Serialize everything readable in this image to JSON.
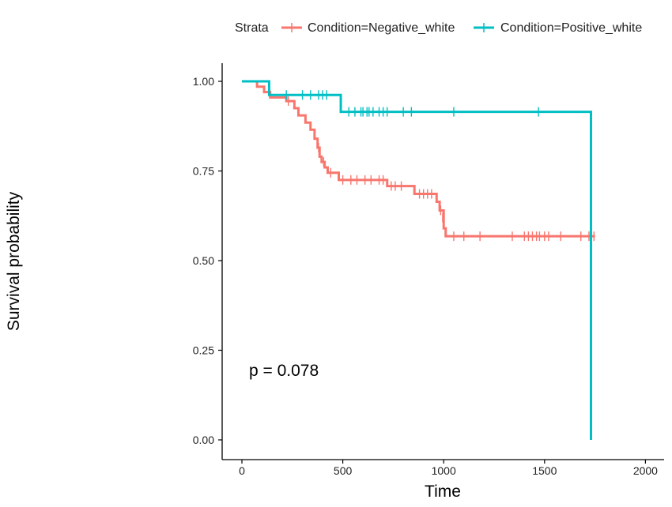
{
  "chart_data": {
    "type": "line",
    "subtype": "kaplan-meier-step",
    "xlabel": "Time",
    "ylabel": "Survival probability",
    "xlim": [
      -100,
      2100
    ],
    "ylim": [
      0,
      1
    ],
    "xticks": [
      0,
      500,
      1000,
      1500,
      2000
    ],
    "yticks": [
      0.0,
      0.25,
      0.5,
      0.75,
      1.0
    ],
    "xtick_labels": [
      "0",
      "500",
      "1000",
      "1500",
      "2000"
    ],
    "ytick_labels": [
      "0.00",
      "0.25",
      "0.50",
      "0.75",
      "1.00"
    ],
    "grid": false,
    "legend": {
      "title": "Strata",
      "position": "top",
      "entries": [
        "Condition=Negative_white",
        "Condition=Positive_white"
      ]
    },
    "annotation": "p = 0.078",
    "series": [
      {
        "name": "Condition=Negative_white",
        "color": "#F8766D",
        "steps": [
          [
            0,
            1.0
          ],
          [
            75,
            0.985
          ],
          [
            110,
            0.97
          ],
          [
            140,
            0.955
          ],
          [
            220,
            0.945
          ],
          [
            260,
            0.925
          ],
          [
            280,
            0.905
          ],
          [
            315,
            0.885
          ],
          [
            340,
            0.865
          ],
          [
            360,
            0.84
          ],
          [
            375,
            0.815
          ],
          [
            385,
            0.79
          ],
          [
            395,
            0.775
          ],
          [
            410,
            0.76
          ],
          [
            425,
            0.745
          ],
          [
            480,
            0.725
          ],
          [
            720,
            0.708
          ],
          [
            855,
            0.686
          ],
          [
            965,
            0.664
          ],
          [
            980,
            0.64
          ],
          [
            1000,
            0.59
          ],
          [
            1010,
            0.568
          ],
          [
            1750,
            0.568
          ]
        ],
        "censored": [
          [
            230,
            0.945
          ],
          [
            380,
            0.815
          ],
          [
            405,
            0.775
          ],
          [
            440,
            0.745
          ],
          [
            500,
            0.725
          ],
          [
            540,
            0.725
          ],
          [
            570,
            0.725
          ],
          [
            610,
            0.725
          ],
          [
            640,
            0.725
          ],
          [
            680,
            0.725
          ],
          [
            700,
            0.725
          ],
          [
            740,
            0.708
          ],
          [
            760,
            0.708
          ],
          [
            790,
            0.708
          ],
          [
            880,
            0.686
          ],
          [
            900,
            0.686
          ],
          [
            920,
            0.686
          ],
          [
            940,
            0.686
          ],
          [
            985,
            0.64
          ],
          [
            995,
            0.62
          ],
          [
            1050,
            0.568
          ],
          [
            1100,
            0.568
          ],
          [
            1180,
            0.568
          ],
          [
            1340,
            0.568
          ],
          [
            1400,
            0.568
          ],
          [
            1420,
            0.568
          ],
          [
            1440,
            0.568
          ],
          [
            1460,
            0.568
          ],
          [
            1475,
            0.568
          ],
          [
            1500,
            0.568
          ],
          [
            1520,
            0.568
          ],
          [
            1580,
            0.568
          ],
          [
            1680,
            0.568
          ],
          [
            1720,
            0.568
          ],
          [
            1745,
            0.568
          ]
        ]
      },
      {
        "name": "Condition=Positive_white",
        "color": "#00BFC4",
        "steps": [
          [
            0,
            1.0
          ],
          [
            135,
            0.962
          ],
          [
            490,
            0.915
          ],
          [
            1730,
            0.0
          ]
        ],
        "censored": [
          [
            220,
            0.962
          ],
          [
            300,
            0.962
          ],
          [
            340,
            0.962
          ],
          [
            380,
            0.962
          ],
          [
            400,
            0.962
          ],
          [
            420,
            0.962
          ],
          [
            530,
            0.915
          ],
          [
            560,
            0.915
          ],
          [
            590,
            0.915
          ],
          [
            600,
            0.915
          ],
          [
            620,
            0.915
          ],
          [
            630,
            0.915
          ],
          [
            650,
            0.915
          ],
          [
            680,
            0.915
          ],
          [
            700,
            0.915
          ],
          [
            720,
            0.915
          ],
          [
            800,
            0.915
          ],
          [
            840,
            0.915
          ],
          [
            1050,
            0.915
          ],
          [
            1470,
            0.915
          ]
        ]
      }
    ]
  }
}
